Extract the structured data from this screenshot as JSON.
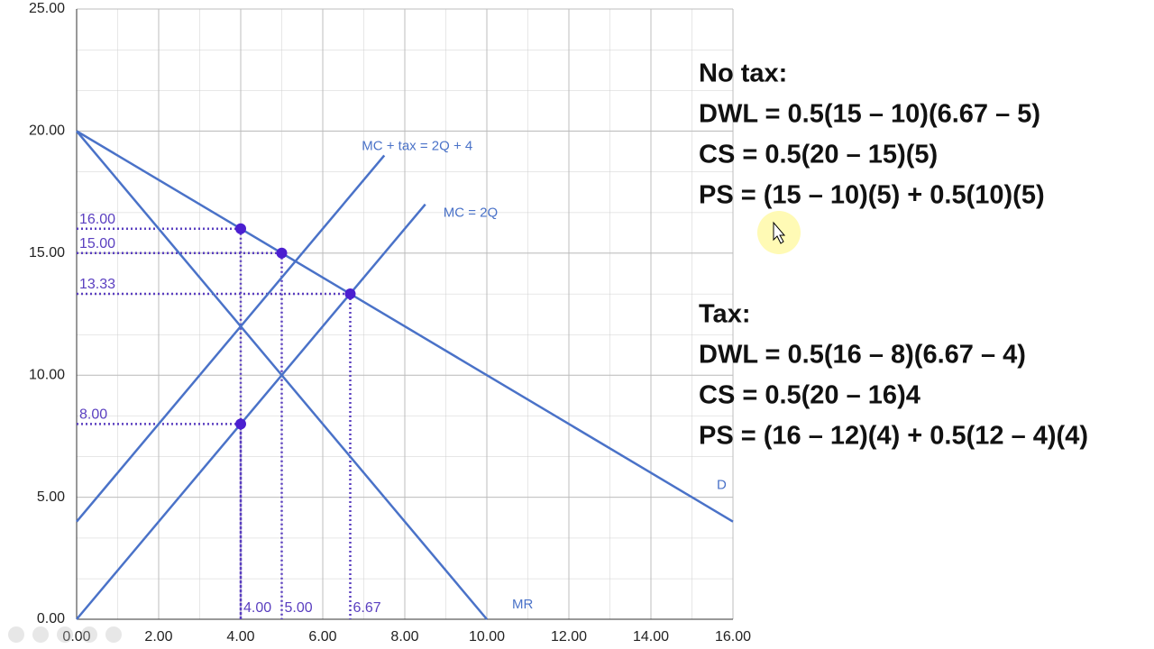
{
  "chart_data": {
    "type": "line",
    "xlim": [
      0,
      16
    ],
    "ylim": [
      0,
      25
    ],
    "xticks": [
      {
        "value": 0,
        "label": "0.00"
      },
      {
        "value": 2,
        "label": "2.00"
      },
      {
        "value": 4,
        "label": "4.00"
      },
      {
        "value": 6,
        "label": "6.00"
      },
      {
        "value": 8,
        "label": "8.00"
      },
      {
        "value": 10,
        "label": "10.00"
      },
      {
        "value": 12,
        "label": "12.00"
      },
      {
        "value": 14,
        "label": "14.00"
      },
      {
        "value": 16,
        "label": "16.00"
      }
    ],
    "yticks": [
      {
        "value": 0,
        "label": "0.00"
      },
      {
        "value": 5,
        "label": "5.00"
      },
      {
        "value": 10,
        "label": "10.00"
      },
      {
        "value": 15,
        "label": "15.00"
      },
      {
        "value": 20,
        "label": "20.00"
      },
      {
        "value": 25,
        "label": "25.00"
      }
    ],
    "grid": true,
    "series": [
      {
        "name": "D",
        "color": "#4a72c8",
        "x": [
          0,
          16
        ],
        "y": [
          20,
          4
        ]
      },
      {
        "name": "MR",
        "color": "#4a72c8",
        "x": [
          0,
          10
        ],
        "y": [
          20,
          0
        ]
      },
      {
        "name": "MC = 2Q",
        "color": "#4a72c8",
        "x": [
          0,
          8.5
        ],
        "y": [
          0,
          17
        ]
      },
      {
        "name": "MC + tax = 2Q + 4",
        "color": "#4a72c8",
        "x": [
          0,
          7.5
        ],
        "y": [
          4,
          19
        ]
      }
    ],
    "points": {
      "color": "#4b1fd0",
      "x": [
        4,
        5,
        6.67,
        4
      ],
      "y": [
        16,
        15,
        13.33,
        8
      ]
    },
    "y_labels": [
      {
        "value": 16,
        "label": "16.00"
      },
      {
        "value": 15,
        "label": "15.00"
      },
      {
        "value": 13.33,
        "label": "13.33"
      },
      {
        "value": 8,
        "label": "8.00"
      }
    ],
    "x_labels": [
      {
        "value": 4,
        "label": "4.00"
      },
      {
        "value": 5,
        "label": "5.00"
      },
      {
        "value": 6.67,
        "label": "6.67"
      }
    ]
  },
  "notes": [
    {
      "heading": "No tax:",
      "lines": [
        "DWL = 0.5(15 – 10)(6.67 – 5)",
        "CS = 0.5(20 – 15)(5)",
        "PS = (15 – 10)(5) + 0.5(10)(5)"
      ]
    },
    {
      "heading": "Tax:",
      "lines": [
        "DWL = 0.5(16 – 8)(6.67 – 4)",
        "CS = 0.5(20 – 16)4",
        "PS = (16 – 12)(4) + 0.5(12 – 4)(4)"
      ]
    }
  ]
}
